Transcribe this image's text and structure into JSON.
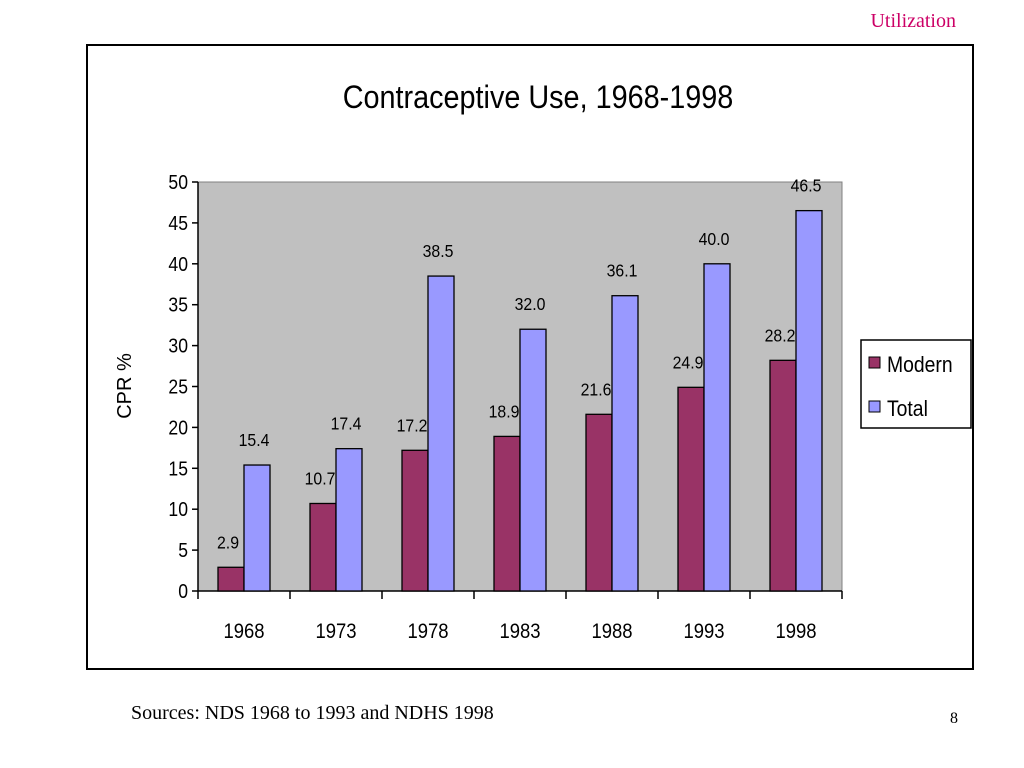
{
  "slide": {
    "header_tag": "Utilization",
    "sources": "Sources: NDS 1968 to 1993 and NDHS 1998",
    "page_number": "8"
  },
  "colors": {
    "header_tag": "#cc0066",
    "modern": "#993366",
    "total": "#9999ff",
    "plot_bg": "#c0c0c0"
  },
  "chart_data": {
    "type": "bar",
    "title": "Contraceptive Use, 1968-1998",
    "ylabel": "CPR %",
    "xlabel": "",
    "categories": [
      "1968",
      "1973",
      "1978",
      "1983",
      "1988",
      "1993",
      "1998"
    ],
    "series": [
      {
        "name": "Modern",
        "values": [
          2.9,
          10.7,
          17.2,
          18.9,
          21.6,
          24.9,
          28.2
        ],
        "labels": [
          "2.9",
          "10.7",
          "17.2",
          "18.9",
          "21.6",
          "24.9",
          "28.2"
        ]
      },
      {
        "name": "Total",
        "values": [
          15.4,
          17.4,
          38.5,
          32.0,
          36.1,
          40.0,
          46.5
        ],
        "labels": [
          "15.4",
          "17.4",
          "38.5",
          "32.0",
          "36.1",
          "40.0",
          "46.5"
        ]
      }
    ],
    "ylim": [
      0,
      50
    ],
    "yticks": [
      "0",
      "5",
      "10",
      "15",
      "20",
      "25",
      "30",
      "35",
      "40",
      "45",
      "50"
    ],
    "grid": false,
    "legend_position": "right"
  }
}
